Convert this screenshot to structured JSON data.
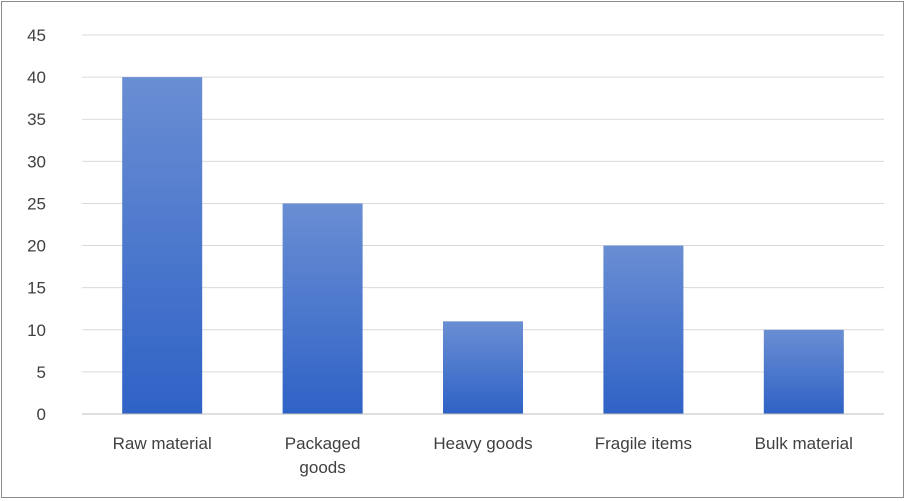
{
  "chart_data": {
    "type": "bar",
    "title": "",
    "xlabel": "",
    "ylabel": "",
    "categories": [
      "Raw material",
      "Packaged goods",
      "Heavy goods",
      "Fragile items",
      "Bulk material"
    ],
    "category_lines": [
      [
        "Raw material"
      ],
      [
        "Packaged",
        "goods"
      ],
      [
        "Heavy goods"
      ],
      [
        "Fragile items"
      ],
      [
        "Bulk material"
      ]
    ],
    "values": [
      40,
      25,
      11,
      20,
      10
    ],
    "ylim": [
      0,
      45
    ],
    "yticks": [
      "0",
      "5",
      "10",
      "15",
      "20",
      "25",
      "30",
      "35",
      "40",
      "45"
    ],
    "grid": true,
    "legend": "none",
    "colors": {
      "bar_top": "#6a8ed3",
      "bar_bottom": "#2f62c6",
      "grid": "#d9d9d9",
      "axis": "#bfbfbf",
      "text": "#404040"
    }
  }
}
